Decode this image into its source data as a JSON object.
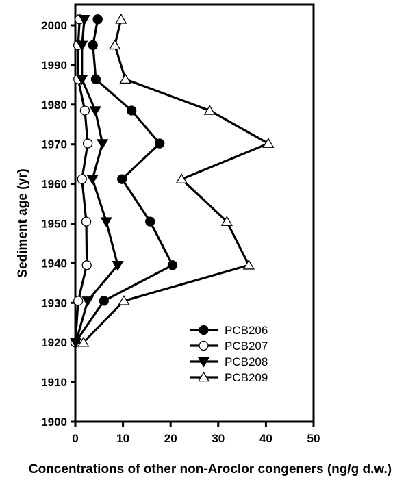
{
  "chart_data": {
    "type": "line",
    "title": "",
    "xlabel": "Concentrations of other non-Aroclor congeners (ng/g d.w.)",
    "ylabel": "Sediment age (yr)",
    "xlim": [
      0,
      50
    ],
    "ylim": [
      1900,
      2005
    ],
    "x_ticks": [
      0,
      10,
      20,
      30,
      40,
      50
    ],
    "y_ticks": [
      1900,
      1910,
      1920,
      1930,
      1940,
      1950,
      1960,
      1970,
      1980,
      1990,
      2000
    ],
    "grid": false,
    "legend_position": "lower right inside",
    "orientation": "depth profile (concentration on x, age on y)",
    "y": [
      2001.5,
      1995,
      1986.4,
      1978.5,
      1970.2,
      1961.2,
      1950.5,
      1939.5,
      1930.5,
      1920
    ],
    "series": [
      {
        "name": "PCB206",
        "marker": "filled-circle",
        "values": [
          4.7,
          3.7,
          4.3,
          11.8,
          17.7,
          9.8,
          15.7,
          20.4,
          6.0,
          0.0
        ]
      },
      {
        "name": "PCB207",
        "marker": "open-circle",
        "values": [
          0.9,
          0.6,
          0.6,
          2.0,
          2.6,
          1.4,
          2.3,
          2.4,
          0.6,
          0.0
        ]
      },
      {
        "name": "PCB208",
        "marker": "filled-triangle-down",
        "values": [
          1.9,
          1.4,
          1.4,
          4.2,
          5.7,
          3.6,
          6.5,
          8.9,
          2.6,
          0.1
        ]
      },
      {
        "name": "PCB209",
        "marker": "open-triangle-up",
        "values": [
          9.6,
          8.3,
          10.5,
          28.2,
          40.5,
          22.3,
          31.8,
          36.4,
          10.2,
          1.7
        ]
      }
    ]
  },
  "colors": {
    "line": "#000000",
    "background": "#ffffff"
  }
}
